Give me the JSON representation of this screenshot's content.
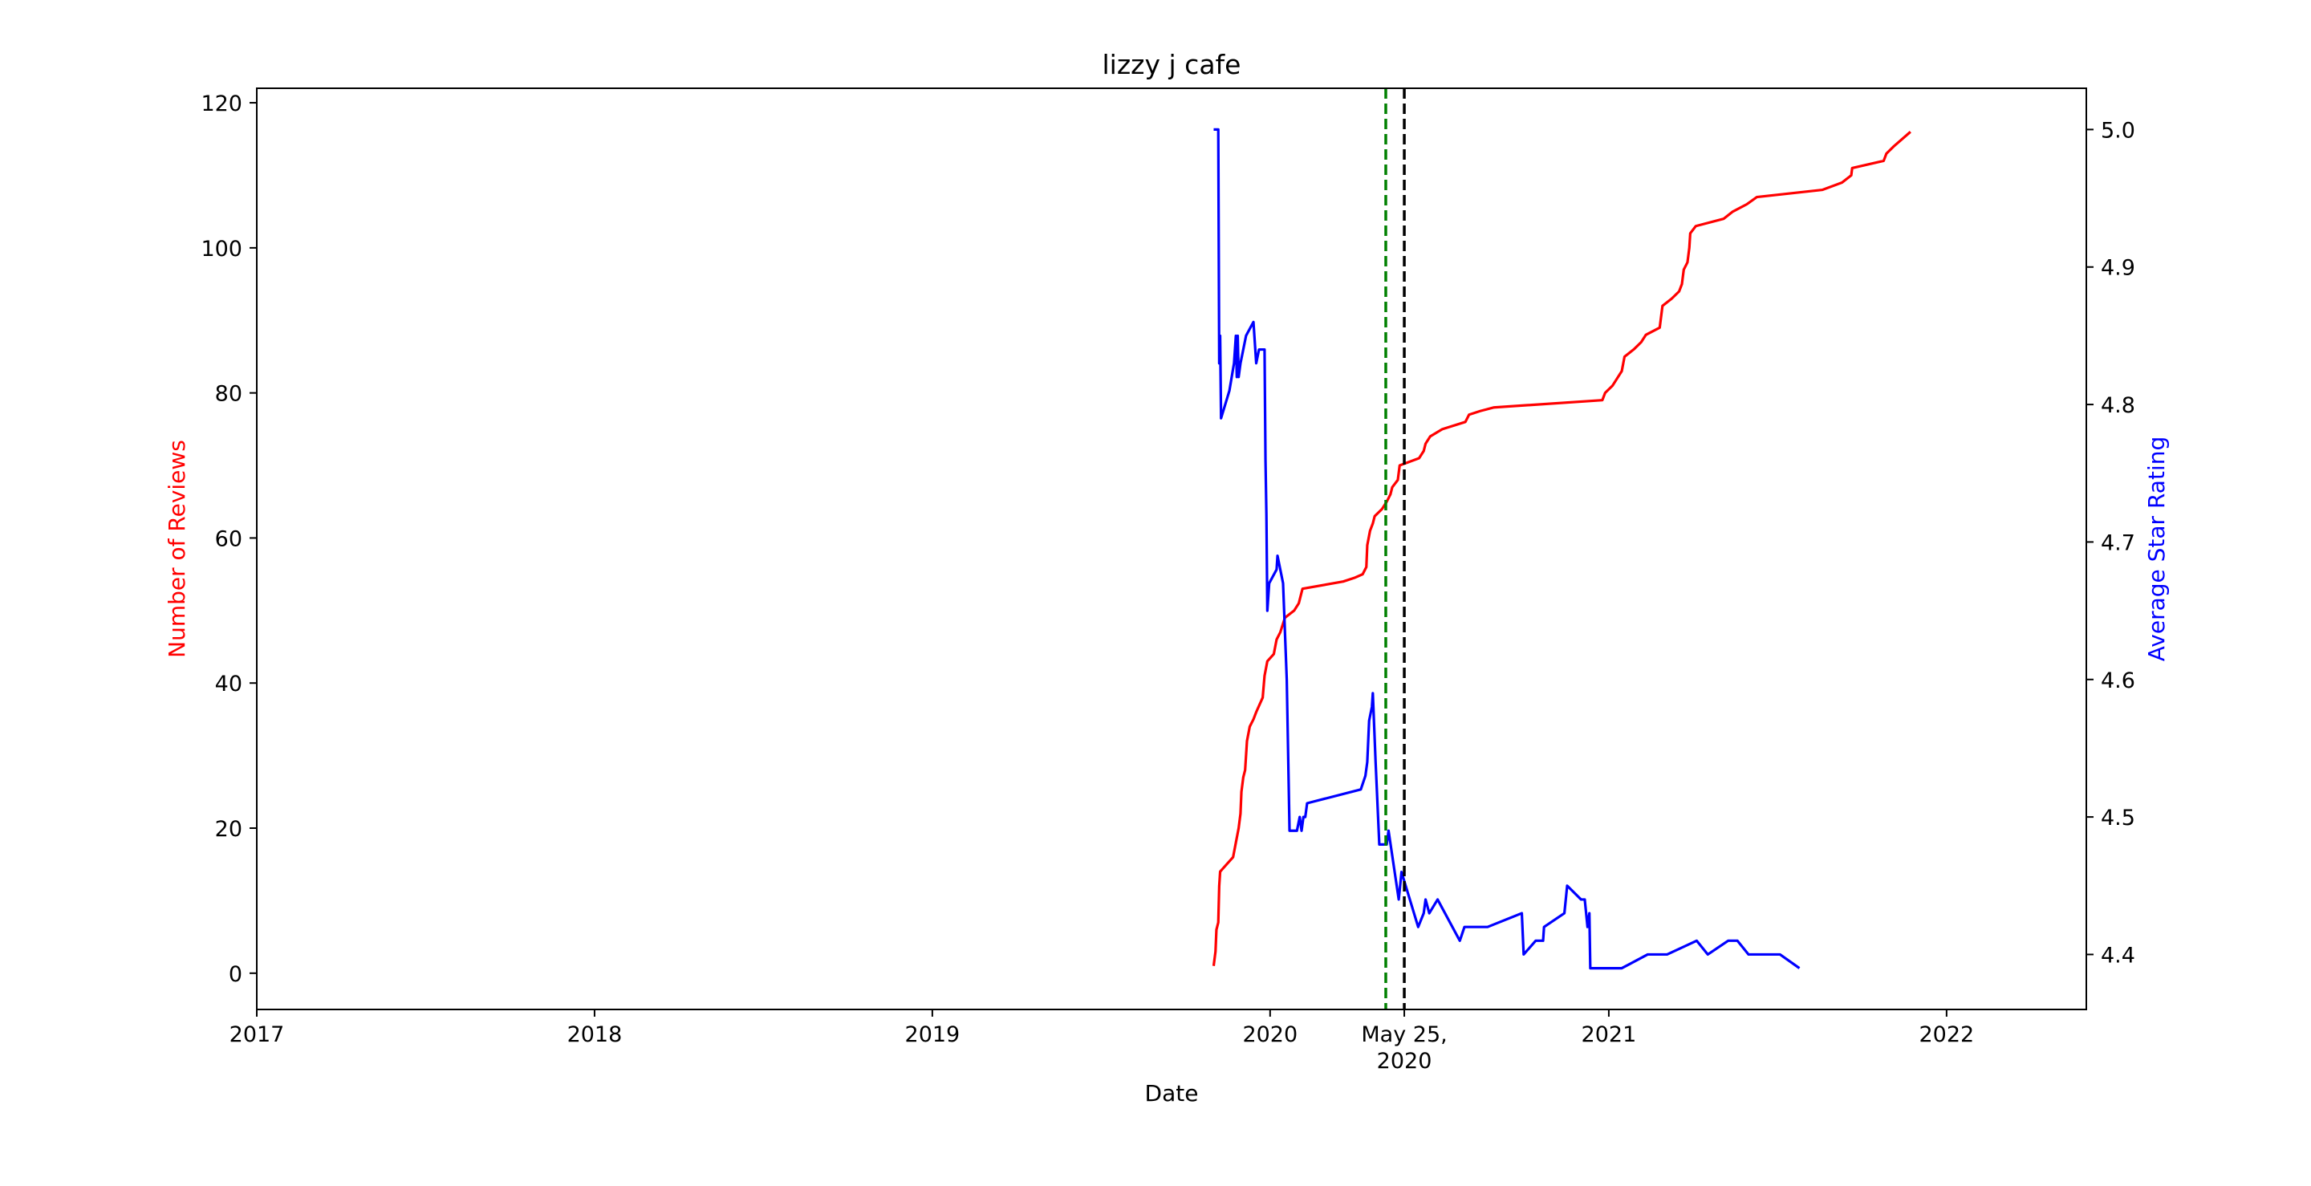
{
  "chart_data": {
    "type": "line",
    "title": "lizzy j cafe",
    "xlabel": "Date",
    "ylabel_left": "Number of Reviews",
    "ylabel_right": "Average Star Rating",
    "xlim": [
      "2017-01-01",
      "2022-06-01"
    ],
    "ylim_left": [
      -5,
      122
    ],
    "ylim_right": [
      4.36,
      5.03
    ],
    "x_ticks": [
      {
        "date": "2017-01-01",
        "label": "2017"
      },
      {
        "date": "2018-01-01",
        "label": "2018"
      },
      {
        "date": "2019-01-01",
        "label": "2019"
      },
      {
        "date": "2020-01-01",
        "label": "2020"
      },
      {
        "date": "2020-05-25",
        "label": "May 25,\n2020"
      },
      {
        "date": "2021-01-01",
        "label": "2021"
      },
      {
        "date": "2022-01-01",
        "label": "2022"
      }
    ],
    "y_ticks_left": [
      0,
      20,
      40,
      60,
      80,
      100,
      120
    ],
    "y_ticks_right": [
      4.4,
      4.5,
      4.6,
      4.7,
      4.8,
      4.9,
      5.0
    ],
    "vlines": [
      {
        "date": "2020-05-05",
        "color": "#008000",
        "style": "dashed"
      },
      {
        "date": "2020-05-25",
        "color": "#000000",
        "style": "dashed"
      }
    ],
    "grid": false,
    "series": [
      {
        "axis": "left",
        "color": "#ff0000",
        "points": [
          [
            "2019-11-01",
            1
          ],
          [
            "2019-11-03",
            3
          ],
          [
            "2019-11-04",
            6
          ],
          [
            "2019-11-06",
            7
          ],
          [
            "2019-11-07",
            12
          ],
          [
            "2019-11-08",
            14
          ],
          [
            "2019-11-15",
            15
          ],
          [
            "2019-11-22",
            16
          ],
          [
            "2019-11-25",
            18
          ],
          [
            "2019-11-28",
            20
          ],
          [
            "2019-11-30",
            22
          ],
          [
            "2019-12-01",
            25
          ],
          [
            "2019-12-03",
            27
          ],
          [
            "2019-12-05",
            28
          ],
          [
            "2019-12-07",
            32
          ],
          [
            "2019-12-10",
            34
          ],
          [
            "2019-12-14",
            35
          ],
          [
            "2019-12-17",
            36
          ],
          [
            "2019-12-24",
            38
          ],
          [
            "2019-12-26",
            41
          ],
          [
            "2019-12-29",
            43
          ],
          [
            "2020-01-05",
            44
          ],
          [
            "2020-01-08",
            46
          ],
          [
            "2020-01-12",
            47
          ],
          [
            "2020-01-17",
            49
          ],
          [
            "2020-01-27",
            50
          ],
          [
            "2020-02-01",
            51
          ],
          [
            "2020-02-03",
            52
          ],
          [
            "2020-02-05",
            53
          ],
          [
            "2020-03-20",
            54
          ],
          [
            "2020-04-01",
            54.5
          ],
          [
            "2020-04-10",
            55
          ],
          [
            "2020-04-14",
            56
          ],
          [
            "2020-04-15",
            59
          ],
          [
            "2020-04-18",
            61
          ],
          [
            "2020-04-21",
            62
          ],
          [
            "2020-04-23",
            63
          ],
          [
            "2020-05-01",
            64
          ],
          [
            "2020-05-06",
            65
          ],
          [
            "2020-05-10",
            66
          ],
          [
            "2020-05-12",
            67
          ],
          [
            "2020-05-18",
            68
          ],
          [
            "2020-05-20",
            70
          ],
          [
            "2020-06-10",
            71
          ],
          [
            "2020-06-15",
            72
          ],
          [
            "2020-06-17",
            73
          ],
          [
            "2020-06-22",
            74
          ],
          [
            "2020-07-05",
            75
          ],
          [
            "2020-07-30",
            76
          ],
          [
            "2020-08-03",
            77
          ],
          [
            "2020-08-15",
            77.5
          ],
          [
            "2020-08-30",
            78
          ],
          [
            "2020-12-25",
            79
          ],
          [
            "2020-12-28",
            80
          ],
          [
            "2021-01-05",
            81
          ],
          [
            "2021-01-10",
            82
          ],
          [
            "2021-01-15",
            83
          ],
          [
            "2021-01-18",
            85
          ],
          [
            "2021-01-28",
            86
          ],
          [
            "2021-02-05",
            87
          ],
          [
            "2021-02-10",
            88
          ],
          [
            "2021-02-25",
            89
          ],
          [
            "2021-02-28",
            92
          ],
          [
            "2021-03-10",
            93
          ],
          [
            "2021-03-18",
            94
          ],
          [
            "2021-03-21",
            95
          ],
          [
            "2021-03-23",
            97
          ],
          [
            "2021-03-27",
            98
          ],
          [
            "2021-03-29",
            100
          ],
          [
            "2021-03-30",
            102
          ],
          [
            "2021-04-05",
            103
          ],
          [
            "2021-05-05",
            104
          ],
          [
            "2021-05-15",
            105
          ],
          [
            "2021-05-30",
            106
          ],
          [
            "2021-06-10",
            107
          ],
          [
            "2021-08-20",
            108
          ],
          [
            "2021-09-10",
            109
          ],
          [
            "2021-09-20",
            110
          ],
          [
            "2021-09-21",
            111
          ],
          [
            "2021-10-25",
            112
          ],
          [
            "2021-10-28",
            113
          ],
          [
            "2021-11-05",
            114
          ],
          [
            "2021-11-23",
            116
          ]
        ]
      },
      {
        "axis": "right",
        "color": "#0000ff",
        "points": [
          [
            "2019-11-01",
            5.0
          ],
          [
            "2019-11-06",
            5.0
          ],
          [
            "2019-11-07",
            4.83
          ],
          [
            "2019-11-08",
            4.85
          ],
          [
            "2019-11-09",
            4.79
          ],
          [
            "2019-11-18",
            4.81
          ],
          [
            "2019-11-23",
            4.83
          ],
          [
            "2019-11-25",
            4.85
          ],
          [
            "2019-11-26",
            4.82
          ],
          [
            "2019-11-27",
            4.85
          ],
          [
            "2019-11-28",
            4.82
          ],
          [
            "2019-11-30",
            4.83
          ],
          [
            "2019-12-03",
            4.84
          ],
          [
            "2019-12-06",
            4.85
          ],
          [
            "2019-12-14",
            4.86
          ],
          [
            "2019-12-17",
            4.83
          ],
          [
            "2019-12-20",
            4.84
          ],
          [
            "2019-12-26",
            4.84
          ],
          [
            "2019-12-27",
            4.76
          ],
          [
            "2019-12-28",
            4.72
          ],
          [
            "2019-12-29",
            4.65
          ],
          [
            "2019-12-31",
            4.67
          ],
          [
            "2020-01-08",
            4.68
          ],
          [
            "2020-01-09",
            4.69
          ],
          [
            "2020-01-15",
            4.67
          ],
          [
            "2020-01-19",
            4.6
          ],
          [
            "2020-01-22",
            4.49
          ],
          [
            "2020-01-30",
            4.49
          ],
          [
            "2020-02-02",
            4.5
          ],
          [
            "2020-02-04",
            4.49
          ],
          [
            "2020-02-06",
            4.5
          ],
          [
            "2020-02-08",
            4.5
          ],
          [
            "2020-02-10",
            4.51
          ],
          [
            "2020-04-08",
            4.52
          ],
          [
            "2020-04-13",
            4.53
          ],
          [
            "2020-04-15",
            4.54
          ],
          [
            "2020-04-17",
            4.57
          ],
          [
            "2020-04-20",
            4.58
          ],
          [
            "2020-04-21",
            4.59
          ],
          [
            "2020-04-24",
            4.54
          ],
          [
            "2020-04-28",
            4.48
          ],
          [
            "2020-05-06",
            4.48
          ],
          [
            "2020-05-08",
            4.49
          ],
          [
            "2020-05-19",
            4.44
          ],
          [
            "2020-05-22",
            4.46
          ],
          [
            "2020-06-09",
            4.42
          ],
          [
            "2020-06-15",
            4.43
          ],
          [
            "2020-06-17",
            4.44
          ],
          [
            "2020-06-21",
            4.43
          ],
          [
            "2020-06-30",
            4.44
          ],
          [
            "2020-07-24",
            4.41
          ],
          [
            "2020-07-29",
            4.42
          ],
          [
            "2020-08-23",
            4.42
          ],
          [
            "2020-09-29",
            4.43
          ],
          [
            "2020-10-01",
            4.4
          ],
          [
            "2020-10-14",
            4.41
          ],
          [
            "2020-10-22",
            4.41
          ],
          [
            "2020-10-23",
            4.42
          ],
          [
            "2020-11-14",
            4.43
          ],
          [
            "2020-11-17",
            4.45
          ],
          [
            "2020-12-02",
            4.44
          ],
          [
            "2020-12-06",
            4.44
          ],
          [
            "2020-12-09",
            4.42
          ],
          [
            "2020-12-11",
            4.43
          ],
          [
            "2020-12-12",
            4.39
          ],
          [
            "2021-01-02",
            4.39
          ],
          [
            "2021-01-15",
            4.39
          ],
          [
            "2021-02-12",
            4.4
          ],
          [
            "2021-02-26",
            4.4
          ],
          [
            "2021-03-05",
            4.4
          ],
          [
            "2021-04-06",
            4.41
          ],
          [
            "2021-04-18",
            4.4
          ],
          [
            "2021-05-10",
            4.41
          ],
          [
            "2021-05-12",
            4.41
          ],
          [
            "2021-05-20",
            4.41
          ],
          [
            "2021-06-01",
            4.4
          ],
          [
            "2021-06-09",
            4.4
          ],
          [
            "2021-06-24",
            4.4
          ],
          [
            "2021-07-05",
            4.4
          ],
          [
            "2021-07-26",
            4.39
          ]
        ]
      }
    ]
  }
}
